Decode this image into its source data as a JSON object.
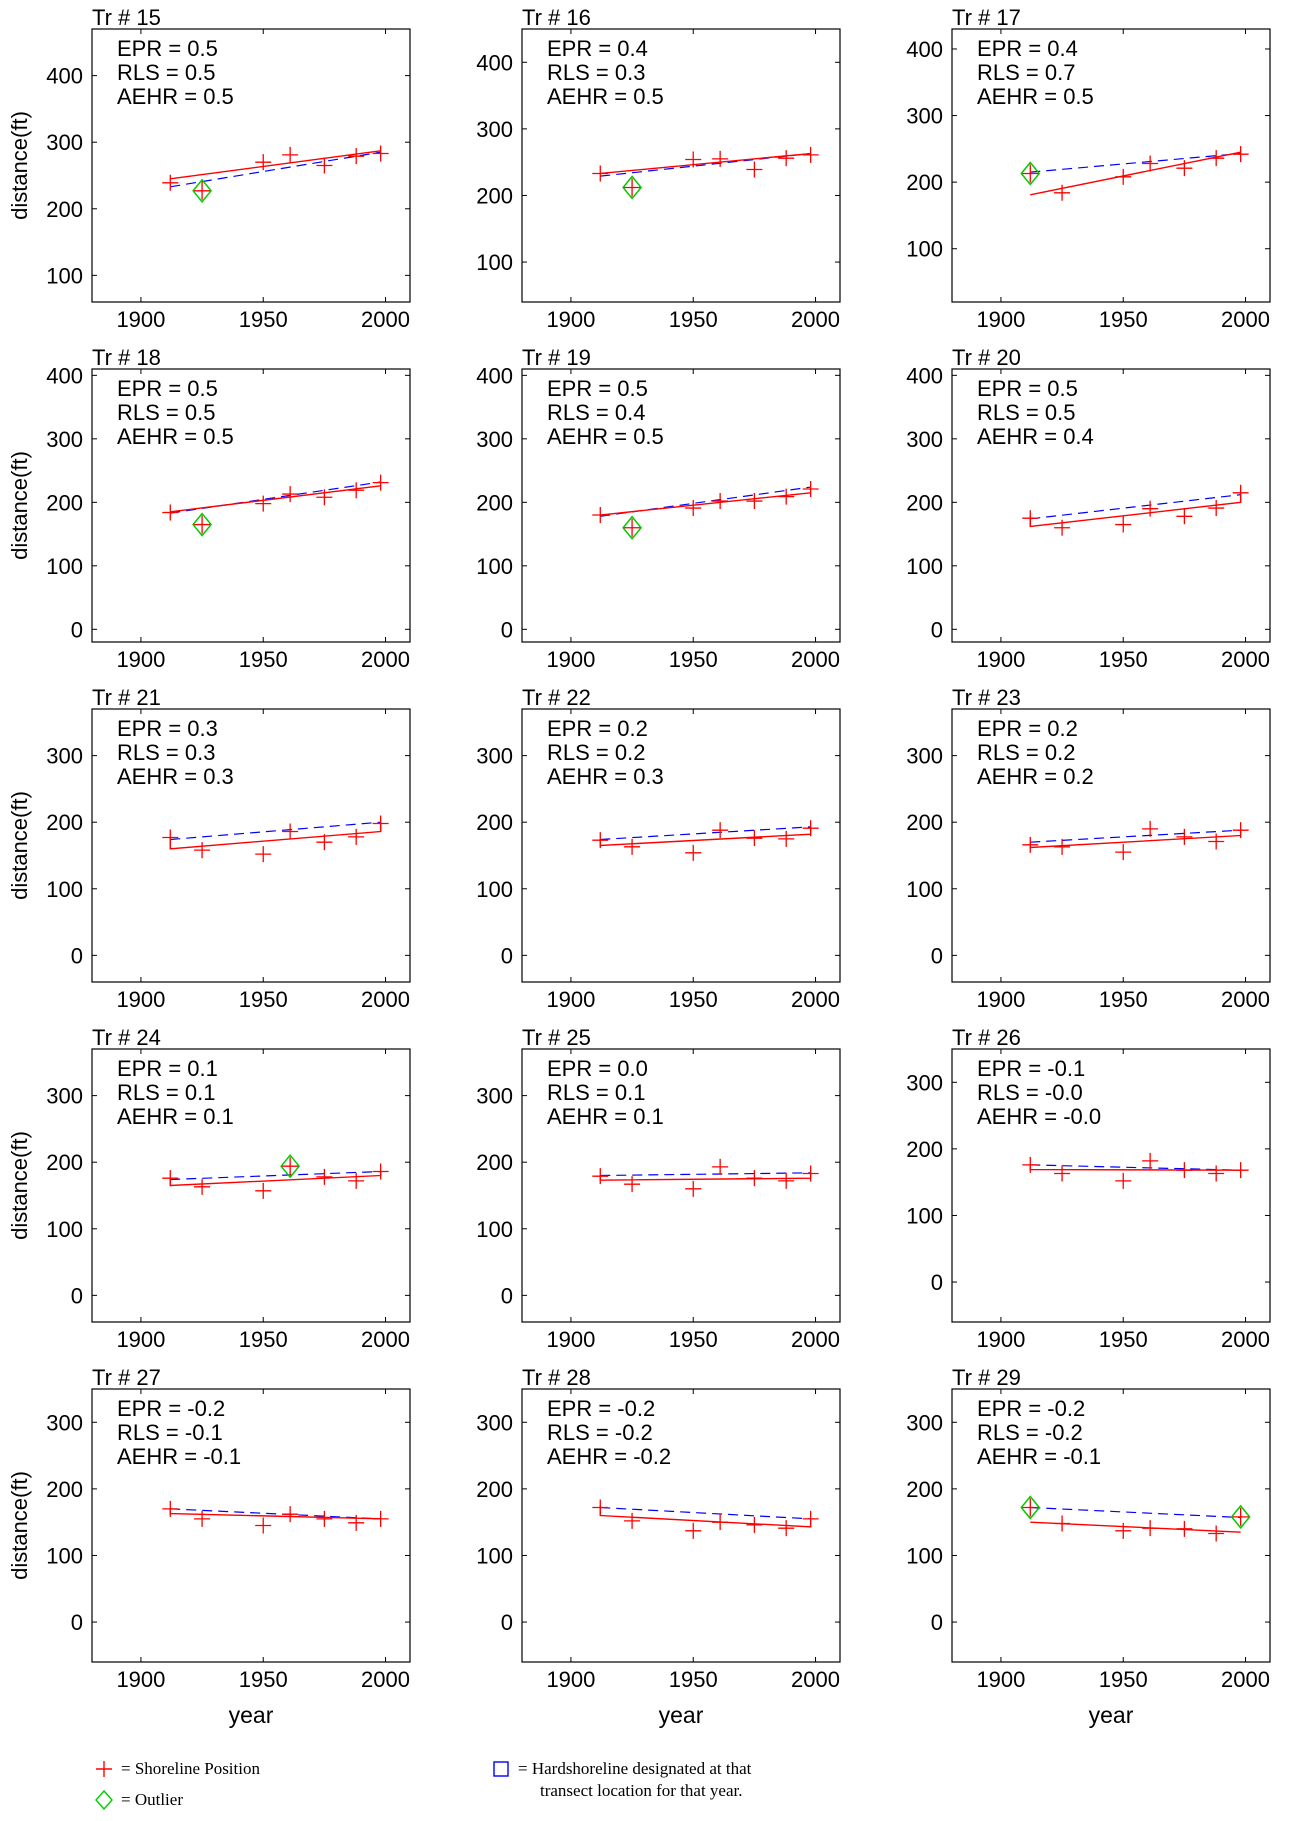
{
  "chart_data": {
    "type": "scatter",
    "layout": "5x3 small multiples",
    "x_ticks": [
      1900,
      1950,
      2000
    ],
    "xlabel": "year",
    "ylabel": "distance(ft)",
    "series_colors": {
      "shoreline": "#ff0000",
      "fit_solid": "#ff0000",
      "fit_dashed": "#0000ff",
      "outlier": "#00cc00"
    },
    "panels": [
      {
        "title": "Tr # 15",
        "epr": "EPR = 0.5",
        "rls": "RLS = 0.5",
        "aehr": "AEHR = 0.5",
        "xlim": [
          1880,
          2010
        ],
        "ylim": [
          60,
          470
        ],
        "yticks": [
          100,
          200,
          300,
          400
        ],
        "points": [
          [
            1912,
            239
          ],
          [
            1950,
            270
          ],
          [
            1961,
            281
          ],
          [
            1975,
            265
          ],
          [
            1988,
            279
          ],
          [
            1998,
            283
          ]
        ],
        "outliers": [
          [
            1925,
            227
          ]
        ],
        "solid": [
          [
            1912,
            245
          ],
          [
            1998,
            287
          ]
        ],
        "dashed": [
          [
            1912,
            233
          ],
          [
            1998,
            285
          ]
        ]
      },
      {
        "title": "Tr # 16",
        "epr": "EPR = 0.4",
        "rls": "RLS = 0.3",
        "aehr": "AEHR = 0.5",
        "xlim": [
          1880,
          2010
        ],
        "ylim": [
          40,
          450
        ],
        "yticks": [
          100,
          200,
          300,
          400
        ],
        "points": [
          [
            1912,
            233
          ],
          [
            1950,
            254
          ],
          [
            1961,
            255
          ],
          [
            1975,
            239
          ],
          [
            1988,
            256
          ],
          [
            1998,
            261
          ]
        ],
        "outliers": [
          [
            1925,
            212
          ]
        ],
        "solid": [
          [
            1912,
            233
          ],
          [
            1998,
            263
          ]
        ],
        "dashed": [
          [
            1912,
            229
          ],
          [
            1998,
            263
          ]
        ]
      },
      {
        "title": "Tr # 17",
        "epr": "EPR = 0.4",
        "rls": "RLS = 0.7",
        "aehr": "AEHR = 0.5",
        "xlim": [
          1880,
          2010
        ],
        "ylim": [
          20,
          430
        ],
        "yticks": [
          100,
          200,
          300,
          400
        ],
        "points": [
          [
            1925,
            184
          ],
          [
            1950,
            208
          ],
          [
            1961,
            228
          ],
          [
            1975,
            221
          ],
          [
            1988,
            236
          ],
          [
            1998,
            242
          ]
        ],
        "outliers": [
          [
            1912,
            213
          ]
        ],
        "solid": [
          [
            1912,
            181
          ],
          [
            1998,
            245
          ]
        ],
        "dashed": [
          [
            1912,
            215
          ],
          [
            1998,
            243
          ]
        ]
      },
      {
        "title": "Tr # 18",
        "epr": "EPR = 0.5",
        "rls": "RLS = 0.5",
        "aehr": "AEHR = 0.5",
        "xlim": [
          1880,
          2010
        ],
        "ylim": [
          -20,
          410
        ],
        "yticks": [
          0,
          100,
          200,
          300,
          400
        ],
        "points": [
          [
            1912,
            184
          ],
          [
            1950,
            198
          ],
          [
            1961,
            213
          ],
          [
            1975,
            208
          ],
          [
            1988,
            219
          ],
          [
            1998,
            231
          ]
        ],
        "outliers": [
          [
            1925,
            165
          ]
        ],
        "solid": [
          [
            1912,
            185
          ],
          [
            1998,
            226
          ]
        ],
        "dashed": [
          [
            1912,
            183
          ],
          [
            1998,
            232
          ]
        ]
      },
      {
        "title": "Tr # 19",
        "epr": "EPR = 0.5",
        "rls": "RLS = 0.4",
        "aehr": "AEHR = 0.5",
        "xlim": [
          1880,
          2010
        ],
        "ylim": [
          -20,
          410
        ],
        "yticks": [
          0,
          100,
          200,
          300,
          400
        ],
        "points": [
          [
            1912,
            180
          ],
          [
            1950,
            191
          ],
          [
            1961,
            202
          ],
          [
            1975,
            202
          ],
          [
            1988,
            209
          ],
          [
            1998,
            221
          ]
        ],
        "outliers": [
          [
            1925,
            160
          ]
        ],
        "solid": [
          [
            1912,
            180
          ],
          [
            1998,
            215
          ]
        ],
        "dashed": [
          [
            1912,
            178
          ],
          [
            1998,
            224
          ]
        ]
      },
      {
        "title": "Tr # 20",
        "epr": "EPR = 0.5",
        "rls": "RLS = 0.5",
        "aehr": "AEHR = 0.4",
        "xlim": [
          1880,
          2010
        ],
        "ylim": [
          -20,
          410
        ],
        "yticks": [
          0,
          100,
          200,
          300,
          400
        ],
        "points": [
          [
            1912,
            175
          ],
          [
            1925,
            160
          ],
          [
            1950,
            165
          ],
          [
            1961,
            190
          ],
          [
            1975,
            178
          ],
          [
            1988,
            191
          ],
          [
            1998,
            215
          ]
        ],
        "outliers": [],
        "solid": [
          [
            1912,
            178
          ],
          [
            1912,
            162
          ],
          [
            1998,
            200
          ],
          [
            1998,
            216
          ]
        ],
        "dashed": [
          [
            1912,
            174
          ],
          [
            1998,
            212
          ]
        ]
      },
      {
        "title": "Tr # 21",
        "epr": "EPR = 0.3",
        "rls": "RLS = 0.3",
        "aehr": "AEHR = 0.3",
        "xlim": [
          1880,
          2010
        ],
        "ylim": [
          -40,
          370
        ],
        "yticks": [
          0,
          100,
          200,
          300
        ],
        "points": [
          [
            1912,
            177
          ],
          [
            1925,
            158
          ],
          [
            1950,
            152
          ],
          [
            1961,
            186
          ],
          [
            1975,
            170
          ],
          [
            1988,
            178
          ],
          [
            1998,
            198
          ]
        ],
        "outliers": [],
        "solid": [
          [
            1912,
            178
          ],
          [
            1912,
            160
          ],
          [
            1998,
            186
          ],
          [
            1998,
            200
          ]
        ],
        "dashed": [
          [
            1912,
            174
          ],
          [
            1998,
            200
          ]
        ]
      },
      {
        "title": "Tr # 22",
        "epr": "EPR = 0.2",
        "rls": "RLS = 0.2",
        "aehr": "AEHR = 0.3",
        "xlim": [
          1880,
          2010
        ],
        "ylim": [
          -40,
          370
        ],
        "yticks": [
          0,
          100,
          200,
          300
        ],
        "points": [
          [
            1912,
            173
          ],
          [
            1925,
            163
          ],
          [
            1950,
            154
          ],
          [
            1961,
            188
          ],
          [
            1975,
            176
          ],
          [
            1988,
            175
          ],
          [
            1998,
            191
          ]
        ],
        "outliers": [],
        "solid": [
          [
            1912,
            175
          ],
          [
            1912,
            165
          ],
          [
            1998,
            182
          ],
          [
            1998,
            191
          ]
        ],
        "dashed": [
          [
            1912,
            174
          ],
          [
            1998,
            193
          ]
        ]
      },
      {
        "title": "Tr # 23",
        "epr": "EPR = 0.2",
        "rls": "RLS = 0.2",
        "aehr": "AEHR = 0.2",
        "xlim": [
          1880,
          2010
        ],
        "ylim": [
          -40,
          370
        ],
        "yticks": [
          0,
          100,
          200,
          300
        ],
        "points": [
          [
            1912,
            166
          ],
          [
            1925,
            163
          ],
          [
            1950,
            155
          ],
          [
            1961,
            190
          ],
          [
            1975,
            178
          ],
          [
            1988,
            171
          ],
          [
            1998,
            188
          ]
        ],
        "outliers": [],
        "solid": [
          [
            1912,
            170
          ],
          [
            1912,
            162
          ],
          [
            1998,
            180
          ],
          [
            1998,
            190
          ]
        ],
        "dashed": [
          [
            1912,
            170
          ],
          [
            1998,
            188
          ]
        ]
      },
      {
        "title": "Tr # 24",
        "epr": "EPR = 0.1",
        "rls": "RLS = 0.1",
        "aehr": "AEHR = 0.1",
        "xlim": [
          1880,
          2010
        ],
        "ylim": [
          -40,
          370
        ],
        "yticks": [
          0,
          100,
          200,
          300
        ],
        "points": [
          [
            1912,
            176
          ],
          [
            1925,
            163
          ],
          [
            1950,
            157
          ],
          [
            1975,
            178
          ],
          [
            1988,
            172
          ],
          [
            1998,
            186
          ]
        ],
        "outliers": [
          [
            1961,
            194
          ]
        ],
        "solid": [
          [
            1912,
            176
          ],
          [
            1912,
            165
          ],
          [
            1998,
            180
          ],
          [
            1998,
            186
          ]
        ],
        "dashed": [
          [
            1912,
            174
          ],
          [
            1998,
            186
          ]
        ]
      },
      {
        "title": "Tr # 25",
        "epr": "EPR = 0.0",
        "rls": "RLS = 0.1",
        "aehr": "AEHR = 0.1",
        "xlim": [
          1880,
          2010
        ],
        "ylim": [
          -40,
          370
        ],
        "yticks": [
          0,
          100,
          200,
          300
        ],
        "points": [
          [
            1912,
            179
          ],
          [
            1925,
            167
          ],
          [
            1950,
            160
          ],
          [
            1961,
            193
          ],
          [
            1975,
            176
          ],
          [
            1988,
            172
          ],
          [
            1998,
            183
          ]
        ],
        "outliers": [],
        "solid": [
          [
            1912,
            181
          ],
          [
            1912,
            173
          ],
          [
            1998,
            176
          ],
          [
            1998,
            184
          ]
        ],
        "dashed": [
          [
            1912,
            180
          ],
          [
            1998,
            184
          ]
        ]
      },
      {
        "title": "Tr # 26",
        "epr": "EPR = -0.1",
        "rls": "RLS = -0.0",
        "aehr": "AEHR = -0.0",
        "xlim": [
          1880,
          2010
        ],
        "ylim": [
          -60,
          350
        ],
        "yticks": [
          0,
          100,
          200,
          300
        ],
        "points": [
          [
            1912,
            176
          ],
          [
            1925,
            163
          ],
          [
            1950,
            152
          ],
          [
            1961,
            182
          ],
          [
            1975,
            168
          ],
          [
            1988,
            163
          ],
          [
            1998,
            168
          ]
        ],
        "outliers": [],
        "solid": [
          [
            1912,
            177
          ],
          [
            1912,
            169
          ],
          [
            1998,
            168
          ],
          [
            1998,
            170
          ]
        ],
        "dashed": [
          [
            1912,
            176
          ],
          [
            1998,
            168
          ]
        ]
      },
      {
        "title": "Tr # 27",
        "epr": "EPR = -0.2",
        "rls": "RLS = -0.1",
        "aehr": "AEHR = -0.1",
        "xlim": [
          1880,
          2010
        ],
        "ylim": [
          -60,
          350
        ],
        "yticks": [
          0,
          100,
          200,
          300
        ],
        "points": [
          [
            1912,
            170
          ],
          [
            1925,
            155
          ],
          [
            1950,
            145
          ],
          [
            1961,
            162
          ],
          [
            1975,
            155
          ],
          [
            1988,
            149
          ],
          [
            1998,
            155
          ]
        ],
        "outliers": [],
        "solid": [
          [
            1912,
            170
          ],
          [
            1912,
            163
          ],
          [
            1998,
            155
          ],
          [
            1998,
            157
          ]
        ],
        "dashed": [
          [
            1912,
            170
          ],
          [
            1998,
            155
          ]
        ]
      },
      {
        "title": "Tr # 28",
        "epr": "EPR = -0.2",
        "rls": "RLS = -0.2",
        "aehr": "AEHR = -0.2",
        "xlim": [
          1880,
          2010
        ],
        "ylim": [
          -60,
          350
        ],
        "yticks": [
          0,
          100,
          200,
          300
        ],
        "points": [
          [
            1912,
            172
          ],
          [
            1925,
            152
          ],
          [
            1950,
            137
          ],
          [
            1961,
            150
          ],
          [
            1975,
            146
          ],
          [
            1988,
            141
          ],
          [
            1998,
            155
          ]
        ],
        "outliers": [],
        "solid": [
          [
            1912,
            175
          ],
          [
            1912,
            160
          ],
          [
            1998,
            143
          ],
          [
            1998,
            155
          ]
        ],
        "dashed": [
          [
            1912,
            172
          ],
          [
            1998,
            155
          ]
        ]
      },
      {
        "title": "Tr # 29",
        "epr": "EPR = -0.2",
        "rls": "RLS = -0.2",
        "aehr": "AEHR = -0.1",
        "xlim": [
          1880,
          2010
        ],
        "ylim": [
          -60,
          350
        ],
        "yticks": [
          0,
          100,
          200,
          300
        ],
        "points": [
          [
            1925,
            148
          ],
          [
            1950,
            137
          ],
          [
            1961,
            141
          ],
          [
            1975,
            140
          ],
          [
            1988,
            133
          ]
        ],
        "outliers": [
          [
            1912,
            172
          ],
          [
            1998,
            158
          ]
        ],
        "solid": [
          [
            1912,
            150
          ],
          [
            1998,
            135
          ]
        ],
        "dashed": [
          [
            1912,
            172
          ],
          [
            1998,
            157
          ]
        ]
      }
    ]
  },
  "legend": {
    "shoreline": "= Shoreline Position",
    "outlier": "= Outlier",
    "hard_line1": "= Hardshoreline designated at that",
    "hard_line2": "transect location for that year."
  }
}
